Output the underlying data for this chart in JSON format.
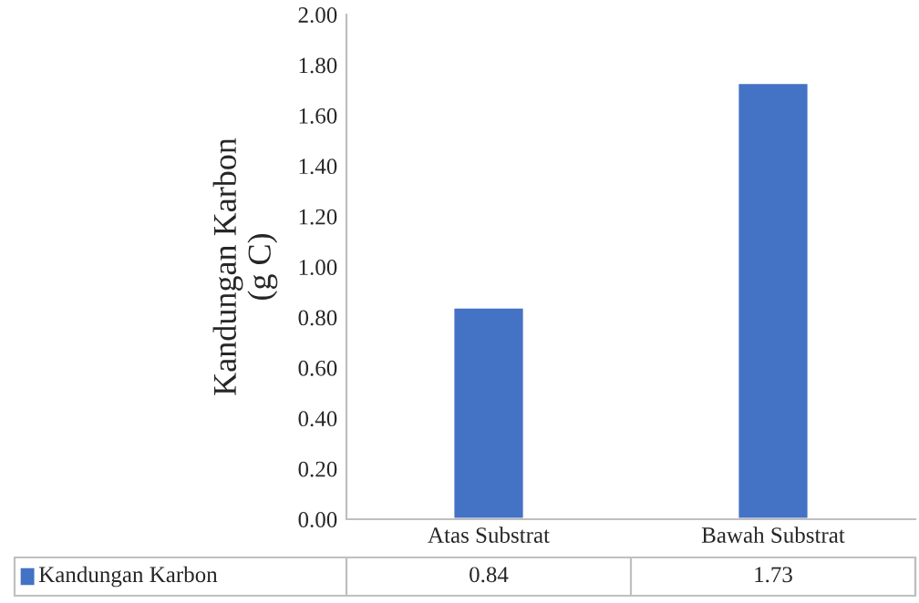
{
  "chart_data": {
    "type": "bar",
    "ylabel": "Kandungan Karbon\n(g C)",
    "categories": [
      "Atas Substrat",
      "Bawah Substrat"
    ],
    "series": [
      {
        "name": "Kandungan Karbon",
        "color": "#4472c4",
        "values": [
          0.84,
          1.73
        ]
      }
    ],
    "ylim": [
      0,
      2.0
    ],
    "yticks": [
      {
        "value": 0,
        "label": "0.00"
      },
      {
        "value": 0.2,
        "label": "0.20"
      },
      {
        "value": 0.4,
        "label": "0.40"
      },
      {
        "value": 0.6,
        "label": "0.60"
      },
      {
        "value": 0.8,
        "label": "0.80"
      },
      {
        "value": 1.0,
        "label": "1.00"
      },
      {
        "value": 1.2,
        "label": "1.20"
      },
      {
        "value": 1.4,
        "label": "1.40"
      },
      {
        "value": 1.6,
        "label": "1.60"
      },
      {
        "value": 1.8,
        "label": "1.80"
      },
      {
        "value": 2.0,
        "label": "2.00"
      }
    ],
    "data_labels": true,
    "legend": "bottom"
  }
}
